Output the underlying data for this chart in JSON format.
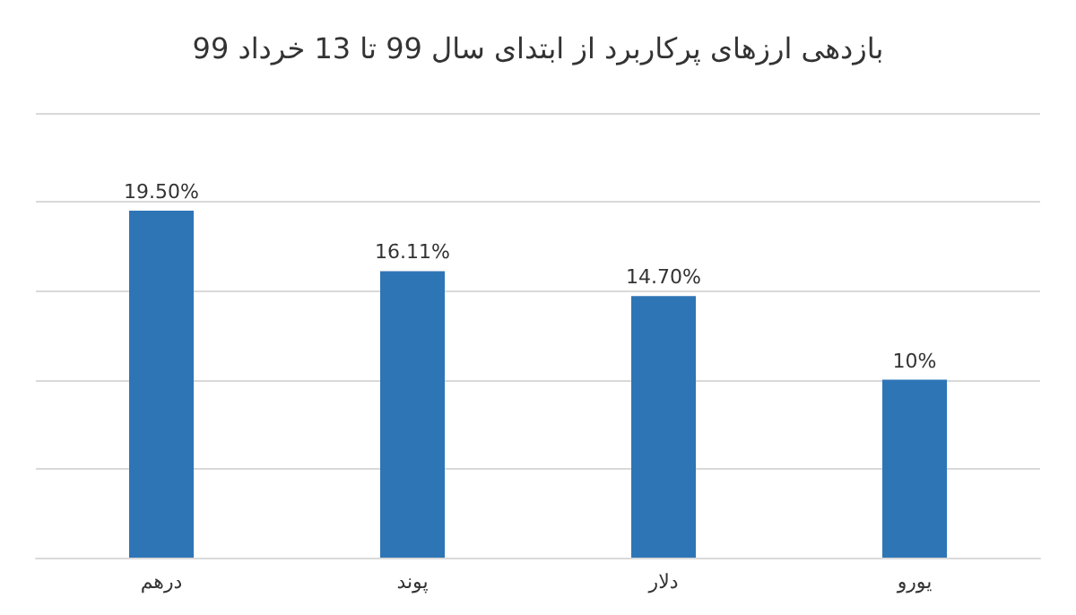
{
  "chart_data": {
    "type": "bar",
    "title": "بازدهی ارزهای پرکاربرد از ابتدای سال 99 تا 13 خرداد 99",
    "categories": [
      "درهم",
      "پوند",
      "دلار",
      "یورو"
    ],
    "values": [
      19.5,
      16.11,
      14.7,
      10
    ],
    "value_labels": [
      "19.50%",
      "16.11%",
      "14.70%",
      "10%"
    ],
    "color": "#2e75b6",
    "ylim": [
      0,
      25
    ],
    "yticks": [
      {
        "value": 0,
        "label": null
      },
      {
        "value": 5,
        "label": null
      },
      {
        "value": 10,
        "label": null
      },
      {
        "value": 15,
        "label": null
      },
      {
        "value": 20,
        "label": null
      },
      {
        "value": 25,
        "label": null
      }
    ],
    "grid": "y",
    "tick_labels": "x"
  }
}
